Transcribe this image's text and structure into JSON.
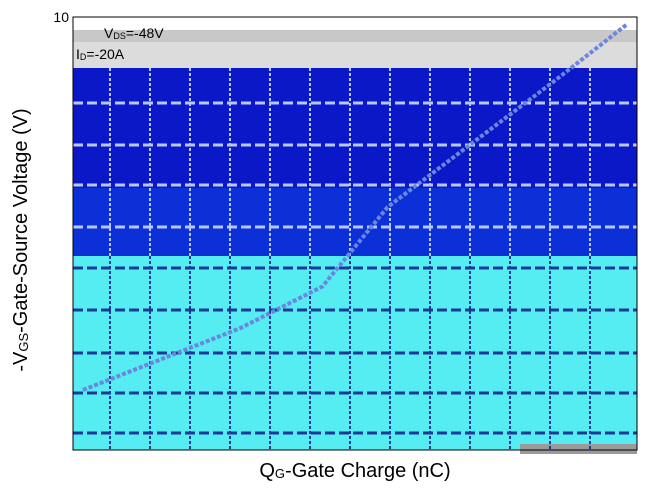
{
  "chart_data": {
    "type": "line",
    "xlabel": "QG-Gate Charge (nC)",
    "xlabel_parts": {
      "main": "Q",
      "sub": "G",
      "rest": "-Gate Charge (nC)"
    },
    "ylabel": "-VGS-Gate-Source Voltage (V)",
    "ylabel_parts": {
      "pre": "-V",
      "sub": "GS",
      "rest": "-Gate-Source Voltage (V)"
    },
    "y_tick_labels": [
      "10"
    ],
    "ylim": [
      0,
      10
    ],
    "grid": true,
    "legend_position": "top-left",
    "annotations": [
      {
        "text": "VDS=-48V",
        "parts": {
          "main": "V",
          "sub": "DS",
          "rest": "=-48V"
        }
      },
      {
        "text": "ID=-20A",
        "parts": {
          "main": "I",
          "sub": "D",
          "rest": "=-20A"
        }
      }
    ],
    "series": [
      {
        "values": [
          [
            0,
            0
          ],
          [
            0.29,
            1.8
          ],
          [
            0.44,
            3.0
          ],
          [
            0.56,
            5.3
          ],
          [
            0.87,
            9.0
          ],
          [
            1.0,
            10.6
          ]
        ]
      }
    ],
    "colors": {
      "band_top": "#c8c8c8",
      "band_dark": "#0a18c8",
      "band_mid": "#0c30d8",
      "band_light": "#55ecf2",
      "grid_dark": "#b8c8ff",
      "grid_light": "#1a3a9a",
      "line": "#6a86e0",
      "frame": "#000000"
    }
  }
}
